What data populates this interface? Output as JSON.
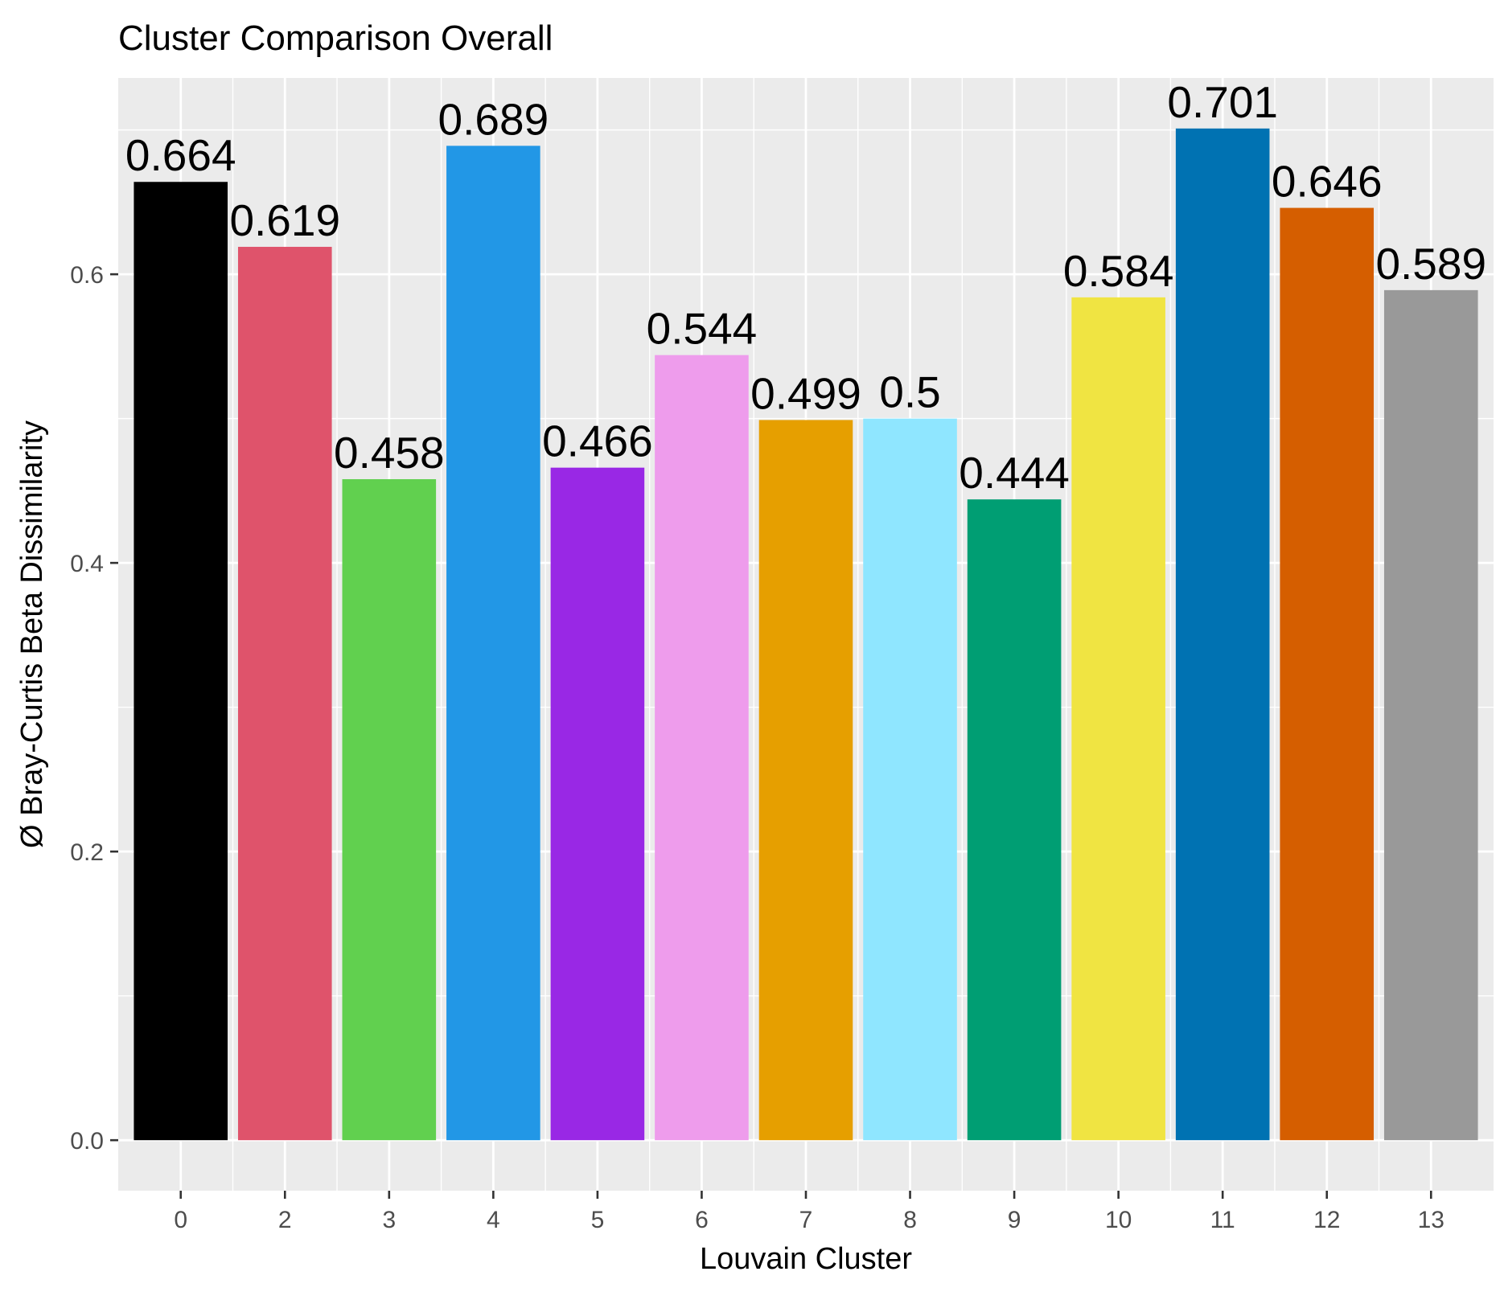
{
  "chart_data": {
    "type": "bar",
    "title": "Cluster Comparison Overall",
    "xlabel": "Louvain Cluster",
    "ylabel": "Ø Bray-Curtis Beta Dissimilarity",
    "categories": [
      "0",
      "2",
      "3",
      "4",
      "5",
      "6",
      "7",
      "8",
      "9",
      "10",
      "11",
      "12",
      "13"
    ],
    "values": [
      0.664,
      0.619,
      0.458,
      0.689,
      0.466,
      0.544,
      0.499,
      0.5,
      0.444,
      0.584,
      0.701,
      0.646,
      0.589
    ],
    "value_labels": [
      "0.664",
      "0.619",
      "0.458",
      "0.689",
      "0.466",
      "0.544",
      "0.499",
      "0.5",
      "0.444",
      "0.584",
      "0.701",
      "0.646",
      "0.589"
    ],
    "colors": [
      "#000000",
      "#DF536B",
      "#61D04F",
      "#2297E6",
      "#9928E5",
      "#EE9CEC",
      "#E69F00",
      "#8FE6FF",
      "#009E73",
      "#F0E442",
      "#0072B2",
      "#D55E00",
      "#999999"
    ],
    "yticks": [
      "0.0",
      "0.2",
      "0.4",
      "0.6"
    ],
    "ytick_values": [
      0.0,
      0.2,
      0.4,
      0.6
    ],
    "ylim": [
      -0.035,
      0.736
    ],
    "grid": true,
    "legend": "none",
    "panel_color": "#EBEBEB",
    "grid_color": "#FFFFFF"
  }
}
